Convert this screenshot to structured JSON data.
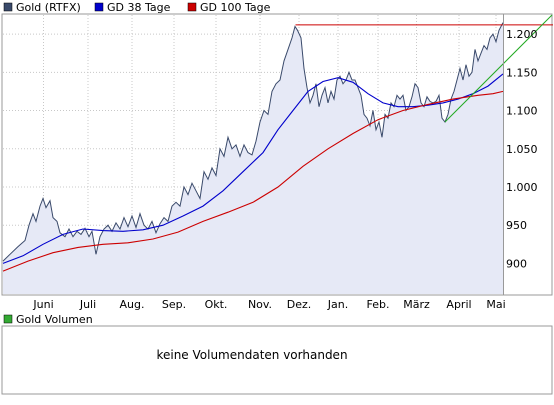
{
  "legend": {
    "price": {
      "label": "Gold (RTFX)",
      "color": "#3a4a6b"
    },
    "ma38": {
      "label": "GD 38 Tage",
      "color": "#0000cc"
    },
    "ma100": {
      "label": "GD 100 Tage",
      "color": "#cc0000"
    }
  },
  "volume_panel": {
    "legend_label": "Gold Volumen",
    "legend_color": "#33aa33",
    "message": "keine Volumendaten vorhanden"
  },
  "colors": {
    "area_fill": "#e6e9f6",
    "grid": "#c8c8c8",
    "resistance_line": "#cc0000",
    "trend_line": "#22aa22",
    "border": "#999999"
  },
  "chart_data": {
    "type": "line",
    "title": "",
    "xlabel": "",
    "ylabel": "",
    "x_range": [
      0,
      100
    ],
    "ylim": [
      860,
      1225
    ],
    "y_ticks": [
      "900",
      "950",
      "1.000",
      "1.050",
      "1.100",
      "1.150",
      "1.200"
    ],
    "y_tick_values": [
      900,
      950,
      1000,
      1050,
      1100,
      1150,
      1200
    ],
    "x_ticks": [
      "Juni",
      "Juli",
      "Aug.",
      "Sep.",
      "Okt.",
      "Nov.",
      "Dez.",
      "Jan.",
      "Feb.",
      "März",
      "April",
      "Mai"
    ],
    "x_tick_positions": [
      8.1,
      17.0,
      25.8,
      34.2,
      42.6,
      51.4,
      59.2,
      67.0,
      75.0,
      82.7,
      91.2,
      98.6
    ],
    "series": [
      {
        "name": "Gold (RTFX)",
        "kind": "area",
        "points": [
          [
            0,
            903
          ],
          [
            1.4,
            912
          ],
          [
            3,
            922
          ],
          [
            4.4,
            930
          ],
          [
            5.2,
            950
          ],
          [
            6,
            965
          ],
          [
            6.6,
            955
          ],
          [
            7.4,
            975
          ],
          [
            8,
            985
          ],
          [
            8.6,
            973
          ],
          [
            9.4,
            982
          ],
          [
            10,
            960
          ],
          [
            10.8,
            955
          ],
          [
            11.4,
            940
          ],
          [
            12.4,
            935
          ],
          [
            13.2,
            945
          ],
          [
            14,
            935
          ],
          [
            14.8,
            942
          ],
          [
            15.6,
            938
          ],
          [
            16.4,
            946
          ],
          [
            17.2,
            935
          ],
          [
            17.8,
            942
          ],
          [
            18.6,
            912
          ],
          [
            19.4,
            935
          ],
          [
            20.2,
            945
          ],
          [
            21,
            950
          ],
          [
            21.8,
            942
          ],
          [
            22.6,
            953
          ],
          [
            23.4,
            945
          ],
          [
            24.2,
            960
          ],
          [
            25,
            948
          ],
          [
            25.8,
            962
          ],
          [
            26.6,
            947
          ],
          [
            27.4,
            965
          ],
          [
            28.2,
            950
          ],
          [
            29,
            945
          ],
          [
            29.8,
            955
          ],
          [
            30.6,
            940
          ],
          [
            31.4,
            952
          ],
          [
            32.2,
            960
          ],
          [
            33,
            955
          ],
          [
            33.8,
            975
          ],
          [
            34.6,
            980
          ],
          [
            35.4,
            975
          ],
          [
            36.2,
            1000
          ],
          [
            37,
            990
          ],
          [
            37.8,
            1005
          ],
          [
            38.6,
            995
          ],
          [
            39.4,
            985
          ],
          [
            40.2,
            1020
          ],
          [
            41,
            1010
          ],
          [
            41.8,
            1025
          ],
          [
            42.6,
            1015
          ],
          [
            43.4,
            1050
          ],
          [
            44.2,
            1040
          ],
          [
            45,
            1065
          ],
          [
            45.8,
            1050
          ],
          [
            46.6,
            1055
          ],
          [
            47.4,
            1040
          ],
          [
            48.2,
            1055
          ],
          [
            49,
            1045
          ],
          [
            49.8,
            1042
          ],
          [
            50.6,
            1060
          ],
          [
            51.4,
            1085
          ],
          [
            52.2,
            1100
          ],
          [
            53,
            1095
          ],
          [
            53.8,
            1125
          ],
          [
            54.6,
            1135
          ],
          [
            55.4,
            1140
          ],
          [
            56.2,
            1165
          ],
          [
            57,
            1180
          ],
          [
            57.8,
            1195
          ],
          [
            58.4,
            1210
          ],
          [
            58.9,
            1205
          ],
          [
            59.6,
            1195
          ],
          [
            60.2,
            1155
          ],
          [
            60.8,
            1130
          ],
          [
            61.4,
            1110
          ],
          [
            62,
            1120
          ],
          [
            62.6,
            1135
          ],
          [
            63.2,
            1105
          ],
          [
            63.8,
            1120
          ],
          [
            64.4,
            1130
          ],
          [
            65,
            1110
          ],
          [
            65.6,
            1125
          ],
          [
            66.2,
            1115
          ],
          [
            66.8,
            1140
          ],
          [
            67.4,
            1145
          ],
          [
            68,
            1135
          ],
          [
            68.6,
            1140
          ],
          [
            69.2,
            1150
          ],
          [
            69.8,
            1140
          ],
          [
            70.4,
            1140
          ],
          [
            71,
            1130
          ],
          [
            71.6,
            1120
          ],
          [
            72.2,
            1095
          ],
          [
            72.8,
            1090
          ],
          [
            73.4,
            1080
          ],
          [
            74,
            1100
          ],
          [
            74.6,
            1075
          ],
          [
            75.2,
            1085
          ],
          [
            75.8,
            1065
          ],
          [
            76.4,
            1095
          ],
          [
            77,
            1090
          ],
          [
            77.6,
            1110
          ],
          [
            78.2,
            1105
          ],
          [
            78.8,
            1120
          ],
          [
            79.4,
            1115
          ],
          [
            80,
            1120
          ],
          [
            80.6,
            1100
          ],
          [
            81.2,
            1105
          ],
          [
            81.8,
            1118
          ],
          [
            82.4,
            1135
          ],
          [
            83,
            1130
          ],
          [
            83.6,
            1110
          ],
          [
            84.2,
            1105
          ],
          [
            84.8,
            1118
          ],
          [
            85.4,
            1112
          ],
          [
            86,
            1110
          ],
          [
            86.6,
            1112
          ],
          [
            87.2,
            1120
          ],
          [
            87.8,
            1090
          ],
          [
            88.4,
            1085
          ],
          [
            89,
            1095
          ],
          [
            89.6,
            1115
          ],
          [
            90.2,
            1125
          ],
          [
            90.8,
            1140
          ],
          [
            91.4,
            1155
          ],
          [
            92,
            1140
          ],
          [
            92.6,
            1160
          ],
          [
            93.2,
            1145
          ],
          [
            93.8,
            1150
          ],
          [
            94.4,
            1180
          ],
          [
            95,
            1165
          ],
          [
            95.6,
            1175
          ],
          [
            96.2,
            1185
          ],
          [
            96.8,
            1180
          ],
          [
            97.4,
            1195
          ],
          [
            98,
            1200
          ],
          [
            98.6,
            1190
          ],
          [
            99.2,
            1205
          ],
          [
            100,
            1215
          ]
        ]
      },
      {
        "name": "GD 38 Tage",
        "kind": "line",
        "points": [
          [
            0,
            900
          ],
          [
            4,
            910
          ],
          [
            8,
            925
          ],
          [
            12,
            938
          ],
          [
            16,
            945
          ],
          [
            20,
            943
          ],
          [
            24,
            942
          ],
          [
            28,
            944
          ],
          [
            32,
            950
          ],
          [
            36,
            962
          ],
          [
            40,
            975
          ],
          [
            44,
            995
          ],
          [
            48,
            1020
          ],
          [
            52,
            1045
          ],
          [
            55,
            1075
          ],
          [
            58,
            1100
          ],
          [
            61,
            1125
          ],
          [
            64,
            1138
          ],
          [
            67,
            1143
          ],
          [
            70,
            1137
          ],
          [
            73,
            1122
          ],
          [
            76,
            1110
          ],
          [
            79,
            1105
          ],
          [
            82,
            1105
          ],
          [
            85,
            1107
          ],
          [
            88,
            1110
          ],
          [
            91,
            1115
          ],
          [
            94,
            1122
          ],
          [
            97,
            1132
          ],
          [
            100,
            1148
          ]
        ]
      },
      {
        "name": "GD 100 Tage",
        "kind": "line",
        "points": [
          [
            0,
            890
          ],
          [
            5,
            903
          ],
          [
            10,
            914
          ],
          [
            15,
            921
          ],
          [
            20,
            925
          ],
          [
            25,
            927
          ],
          [
            30,
            932
          ],
          [
            35,
            941
          ],
          [
            40,
            955
          ],
          [
            45,
            967
          ],
          [
            50,
            980
          ],
          [
            55,
            1000
          ],
          [
            60,
            1027
          ],
          [
            65,
            1050
          ],
          [
            70,
            1070
          ],
          [
            75,
            1088
          ],
          [
            80,
            1100
          ],
          [
            85,
            1108
          ],
          [
            90,
            1115
          ],
          [
            95,
            1120
          ],
          [
            98,
            1122
          ],
          [
            100,
            1125
          ]
        ]
      }
    ],
    "annotations": [
      {
        "type": "horizontal_line",
        "y": 1212,
        "x_start": 58.5,
        "x_end": 100,
        "color": "#cc0000"
      },
      {
        "type": "trend_line",
        "x_start": 88.4,
        "y_start": 1085,
        "x_end": 100,
        "y_end": 1235,
        "color": "#22aa22"
      }
    ],
    "grid": true,
    "legend_position": "top-left"
  }
}
